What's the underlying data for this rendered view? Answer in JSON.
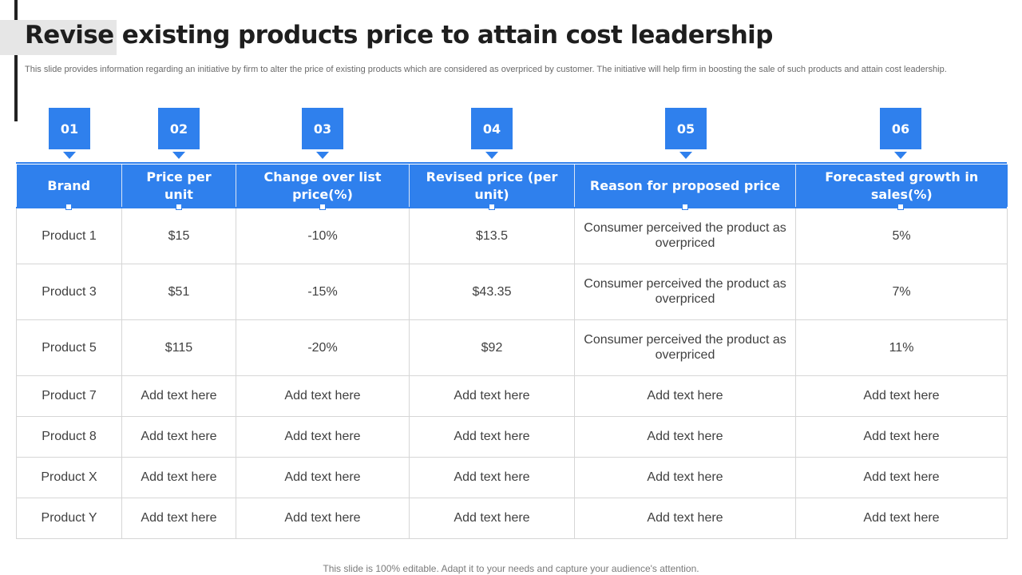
{
  "title": "Revise existing products price to attain cost leadership",
  "subtitle": "This slide provides information regarding an initiative by firm to alter the price of existing products which are considered as overpriced by customer. The initiative will help firm in boosting the sale of such products and attain cost leadership.",
  "badges": [
    "01",
    "02",
    "03",
    "04",
    "05",
    "06"
  ],
  "headers": [
    "Brand",
    "Price per unit",
    "Change over list price(%)",
    "Revised price (per unit)",
    "Reason for proposed price",
    "Forecasted growth in sales(%)"
  ],
  "rows": [
    [
      "Product 1",
      "$15",
      "-10%",
      "$13.5",
      "Consumer perceived the product as overpriced",
      "5%"
    ],
    [
      "Product 3",
      "$51",
      "-15%",
      "$43.35",
      "Consumer perceived the product as overpriced",
      "7%"
    ],
    [
      "Product 5",
      "$115",
      "-20%",
      "$92",
      "Consumer perceived the product as overpriced",
      "11%"
    ],
    [
      "Product 7",
      "Add text here",
      "Add text here",
      "Add text here",
      "Add text here",
      "Add text here"
    ],
    [
      "Product 8",
      "Add text here",
      "Add text here",
      "Add text here",
      "Add text here",
      "Add text here"
    ],
    [
      "Product X",
      "Add text here",
      "Add text here",
      "Add text here",
      "Add text here",
      "Add text here"
    ],
    [
      "Product Y",
      "Add text here",
      "Add text here",
      "Add text here",
      "Add text here",
      "Add text here"
    ]
  ],
  "footer": "This slide is 100% editable. Adapt it to your needs and capture your audience's attention.",
  "colors": {
    "accent": "#2f80ed",
    "title": "#1e1e1e",
    "accent_bar": "#222222"
  }
}
